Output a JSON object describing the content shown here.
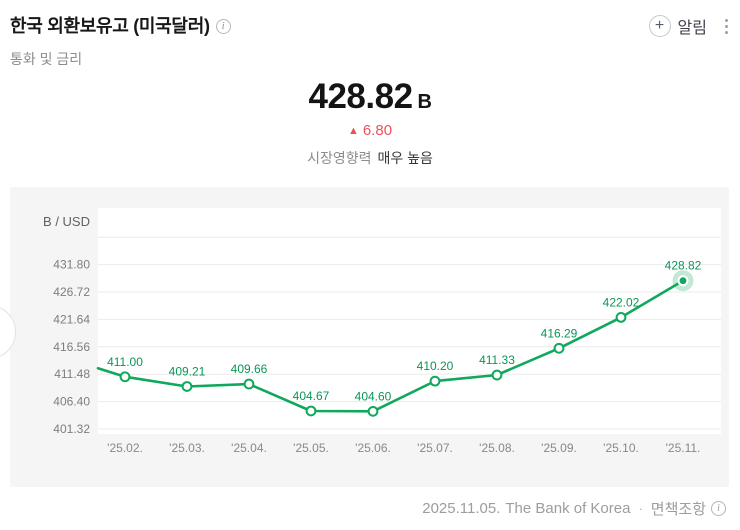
{
  "header": {
    "title": "한국 외환보유고 (미국달러)",
    "subtitle": "통화 및 금리",
    "alert_label": "알림"
  },
  "quote": {
    "value": "428.82",
    "unit": "B",
    "change_arrow": "▲",
    "change": "6.80",
    "impact_label": "시장영향력",
    "impact_value": "매우 높음"
  },
  "chart_data": {
    "type": "line",
    "unit_label": "B / USD",
    "categories": [
      "'25.02.",
      "'25.03.",
      "'25.04.",
      "'25.05.",
      "'25.06.",
      "'25.07.",
      "'25.08.",
      "'25.09.",
      "'25.10.",
      "'25.11."
    ],
    "values": [
      411.0,
      409.21,
      409.66,
      404.67,
      404.6,
      410.2,
      411.33,
      416.29,
      422.02,
      428.82
    ],
    "point_labels": [
      "411.00",
      "409.21",
      "409.66",
      "404.67",
      "404.60",
      "410.20",
      "411.33",
      "416.29",
      "422.02",
      "428.82"
    ],
    "y_tick_labels": [
      "431.80",
      "426.72",
      "421.64",
      "416.56",
      "411.48",
      "406.40",
      "401.32"
    ],
    "extra_gridlines": [
      436.88
    ],
    "ylim": [
      400.4,
      442.3
    ],
    "left_edge_value": 412.6,
    "grid": "horizontal-only",
    "legend": "none",
    "line_color": "#10a85c",
    "point_label_color": "#0a9655",
    "last_point_highlighted": true
  },
  "footer": {
    "date": "2025.11.05.",
    "source": "The Bank of Korea",
    "separator": "·",
    "disclaimer": "면책조항"
  },
  "icons": {
    "info_glyph": "i",
    "plus_glyph": "+"
  },
  "colors": {
    "accent_green": "#10a85c",
    "up_red": "#ee505a",
    "panel_bg": "#f5f5f6"
  }
}
